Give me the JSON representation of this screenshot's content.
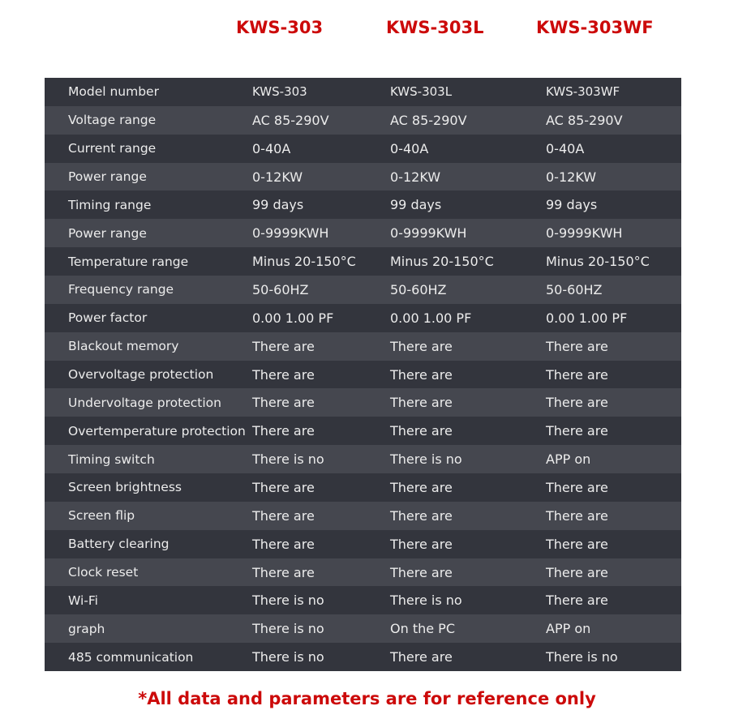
{
  "headers": [
    "KWS-303",
    "KWS-303L",
    "KWS-303WF"
  ],
  "rows": [
    [
      "Model number",
      "KWS-303",
      "KWS-303L",
      "KWS-303WF"
    ],
    [
      "Voltage range",
      "AC 85-290V",
      "AC 85-290V",
      "AC 85-290V"
    ],
    [
      "Current range",
      "0-40A",
      "0-40A",
      "0-40A"
    ],
    [
      "Power range",
      "0-12KW",
      "0-12KW",
      "0-12KW"
    ],
    [
      "Timing range",
      "99 days",
      "99 days",
      "99 days"
    ],
    [
      "Power range",
      "0-9999KWH",
      "0-9999KWH",
      "0-9999KWH"
    ],
    [
      "Temperature range",
      "Minus 20-150°C",
      "Minus 20-150°C",
      "Minus 20-150°C"
    ],
    [
      "Frequency range",
      "50-60HZ",
      "50-60HZ",
      "50-60HZ"
    ],
    [
      "Power factor",
      "0.00 1.00 PF",
      "0.00 1.00 PF",
      "0.00 1.00 PF"
    ],
    [
      "Blackout memory",
      "There are",
      "There are",
      "There are"
    ],
    [
      "Overvoltage protection",
      "There are",
      "There are",
      "There are"
    ],
    [
      "Undervoltage protection",
      "There are",
      "There are",
      "There are"
    ],
    [
      "Overtemperature protection",
      "There are",
      "There are",
      "There are"
    ],
    [
      "Timing switch",
      "There is no",
      "There is no",
      "APP on"
    ],
    [
      "Screen brightness",
      "There are",
      "There are",
      "There are"
    ],
    [
      "Screen flip",
      "There are",
      "There are",
      "There are"
    ],
    [
      "Battery clearing",
      "There are",
      "There are",
      "There are"
    ],
    [
      "Clock reset",
      "There are",
      "There are",
      "There are"
    ],
    [
      "Wi-Fi",
      "There is no",
      "There is no",
      "There are"
    ],
    [
      "graph",
      "There is no",
      "On the PC",
      "APP on"
    ],
    [
      "485 communication",
      "There is no",
      "There are",
      "There is no"
    ]
  ],
  "footnote": "*All data and parameters are for reference only",
  "colors": {
    "accent": "#cc0a0a",
    "row_dark": "#33353d",
    "row_light": "#45474f"
  }
}
